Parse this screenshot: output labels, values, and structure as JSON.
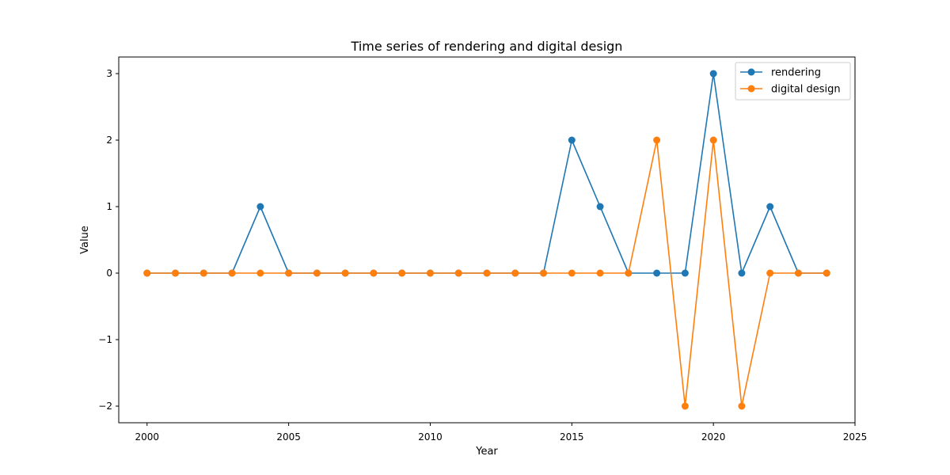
{
  "chart_data": {
    "type": "line",
    "title": "Time series of rendering and digital design",
    "xlabel": "Year",
    "ylabel": "Value",
    "x": [
      2000,
      2001,
      2002,
      2003,
      2004,
      2005,
      2006,
      2007,
      2008,
      2009,
      2010,
      2011,
      2012,
      2013,
      2014,
      2015,
      2016,
      2017,
      2018,
      2019,
      2020,
      2021,
      2022,
      2023,
      2024
    ],
    "xlim": [
      1999,
      2025
    ],
    "ylim": [
      -2.25,
      3.25
    ],
    "xticks": [
      2000,
      2005,
      2010,
      2015,
      2020,
      2025
    ],
    "xtick_labels": [
      "2000",
      "2005",
      "2010",
      "2015",
      "2020",
      "2025"
    ],
    "yticks": [
      -2,
      -1,
      0,
      1,
      2,
      3
    ],
    "ytick_labels": [
      "−2",
      "−1",
      "0",
      "1",
      "2",
      "3"
    ],
    "grid": false,
    "legend_position": "top-right",
    "series": [
      {
        "name": "rendering",
        "color": "#1f77b4",
        "marker": "circle",
        "values": [
          0,
          0,
          0,
          0,
          1,
          0,
          0,
          0,
          0,
          0,
          0,
          0,
          0,
          0,
          0,
          2,
          1,
          0,
          0,
          0,
          3,
          0,
          1,
          0,
          0
        ]
      },
      {
        "name": "digital design",
        "color": "#ff7f0e",
        "marker": "circle",
        "values": [
          0,
          0,
          0,
          0,
          0,
          0,
          0,
          0,
          0,
          0,
          0,
          0,
          0,
          0,
          0,
          0,
          0,
          0,
          2,
          -2,
          2,
          -2,
          0,
          0,
          0
        ]
      }
    ]
  }
}
